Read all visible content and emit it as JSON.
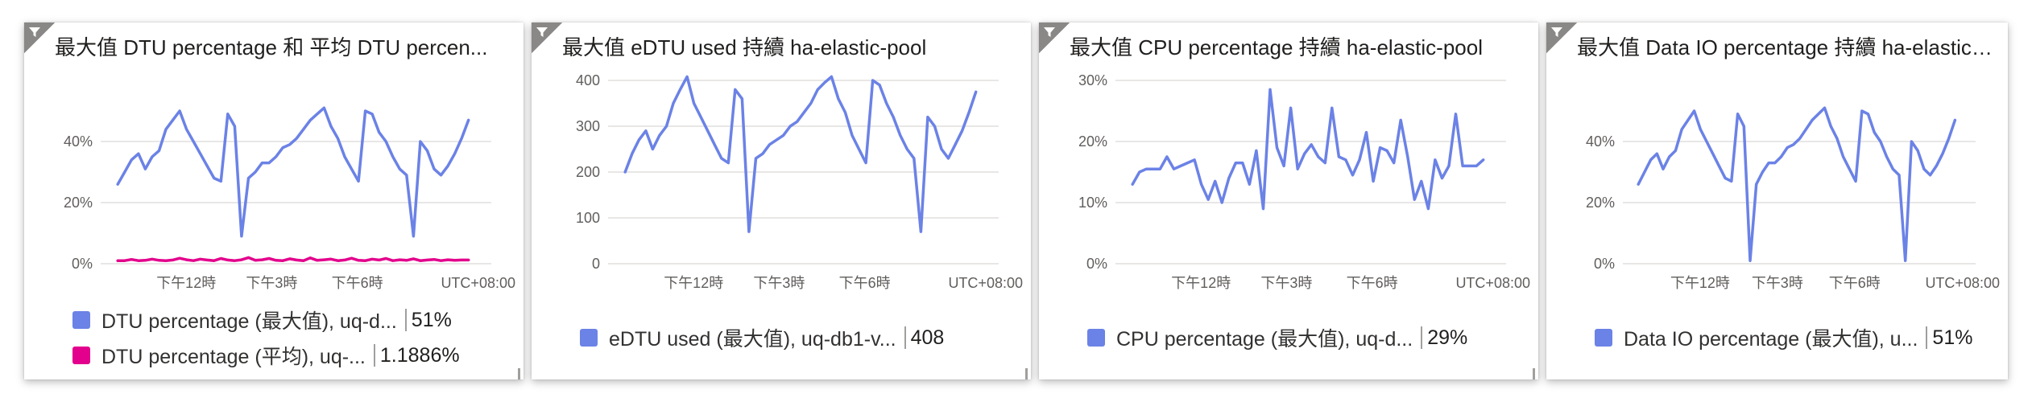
{
  "tiles": [
    {
      "title": "最大值 DTU percentage 和 平均 DTU percen...",
      "timezone": "UTC+08:00",
      "legend": [
        {
          "label": "DTU percentage (最大值), uq-d...",
          "value": "51%",
          "color": "#6b82e6"
        },
        {
          "label": "DTU percentage (平均), uq-...",
          "value": "1.1886%",
          "color": "#e3008c"
        }
      ]
    },
    {
      "title": "最大值 eDTU used 持續 ha-elastic-pool",
      "timezone": "UTC+08:00",
      "legend": [
        {
          "label": "eDTU used (最大值), uq-db1-v...",
          "value": "408",
          "color": "#6b82e6"
        }
      ]
    },
    {
      "title": "最大值 CPU percentage 持續 ha-elastic-pool",
      "timezone": "UTC+08:00",
      "legend": [
        {
          "label": "CPU percentage (最大值), uq-d...",
          "value": "29%",
          "color": "#6b82e6"
        }
      ]
    },
    {
      "title": "最大值 Data IO percentage 持續 ha-elastic-...",
      "timezone": "UTC+08:00",
      "legend": [
        {
          "label": "Data IO percentage (最大值), u...",
          "value": "51%",
          "color": "#6b82e6"
        }
      ]
    }
  ],
  "chart_data": [
    {
      "type": "line",
      "title": "最大值 DTU percentage 和 平均 DTU percen...",
      "ylabel": "",
      "xlabel": "",
      "yticks": [
        "0%",
        "20%",
        "40%"
      ],
      "ylim": [
        0,
        60
      ],
      "xticks": [
        "下午12時",
        "下午3時",
        "下午6時"
      ],
      "xtick_positions": [
        3,
        6,
        9
      ],
      "xlim": [
        0,
        13.7
      ],
      "series": [
        {
          "name": "DTU percentage (最大值), uq-d...",
          "color": "#6b82e6",
          "values": [
            26,
            30,
            34,
            36,
            31,
            35,
            37,
            44,
            47,
            50,
            44,
            40,
            36,
            32,
            28,
            27,
            49,
            45,
            9,
            28,
            30,
            33,
            33,
            35,
            38,
            39,
            41,
            44,
            47,
            49,
            51,
            45,
            41,
            35,
            31,
            27,
            50,
            49,
            43,
            40,
            35,
            31,
            29,
            9,
            40,
            37,
            31,
            29,
            32,
            36,
            41,
            47
          ]
        },
        {
          "name": "DTU percentage (平均), uq-...",
          "color": "#e3008c",
          "values": [
            1,
            1,
            1.4,
            1,
            1.1,
            1.5,
            1.1,
            1,
            1.2,
            1.8,
            1.3,
            1,
            1.5,
            1.2,
            1,
            1.7,
            1.2,
            1,
            1.3,
            2,
            1.1,
            1.3,
            1.7,
            1.1,
            1,
            1.6,
            1.2,
            1,
            1.9,
            1.1,
            1.3,
            1.5,
            1,
            1.2,
            1.8,
            1.1,
            1,
            1.5,
            1.2,
            1.7,
            1,
            1.3,
            1.1,
            1.6,
            1,
            1.2,
            1.4,
            1,
            1.3,
            1.1,
            1.2,
            1.2
          ]
        }
      ]
    },
    {
      "type": "line",
      "title": "最大值 eDTU used 持續 ha-elastic-pool",
      "ylabel": "",
      "xlabel": "",
      "yticks": [
        "0",
        "100",
        "200",
        "300",
        "400"
      ],
      "ylim": [
        0,
        400
      ],
      "xticks": [
        "下午12時",
        "下午3時",
        "下午6時"
      ],
      "xtick_positions": [
        3,
        6,
        9
      ],
      "xlim": [
        0,
        13.7
      ],
      "series": [
        {
          "name": "eDTU used (最大值), uq-db1-v...",
          "color": "#6b82e6",
          "values": [
            200,
            240,
            270,
            290,
            250,
            280,
            300,
            350,
            380,
            408,
            350,
            320,
            290,
            260,
            230,
            220,
            380,
            360,
            70,
            230,
            240,
            260,
            270,
            280,
            300,
            310,
            330,
            350,
            380,
            395,
            408,
            360,
            330,
            280,
            250,
            220,
            400,
            390,
            350,
            320,
            280,
            250,
            230,
            70,
            320,
            300,
            250,
            230,
            260,
            290,
            330,
            375
          ]
        }
      ]
    },
    {
      "type": "line",
      "title": "最大值 CPU percentage 持續 ha-elastic-pool",
      "ylabel": "",
      "xlabel": "",
      "yticks": [
        "0%",
        "10%",
        "20%",
        "30%"
      ],
      "ylim": [
        0,
        30
      ],
      "xticks": [
        "下午12時",
        "下午3時",
        "下午6時"
      ],
      "xtick_positions": [
        3,
        6,
        9
      ],
      "xlim": [
        0,
        13.7
      ],
      "series": [
        {
          "name": "CPU percentage (最大值), uq-d...",
          "color": "#6b82e6",
          "values": [
            13,
            15,
            15.5,
            15.5,
            15.5,
            17.5,
            15.5,
            16,
            16.5,
            17,
            13,
            10.5,
            13.5,
            10,
            14,
            16.5,
            16.5,
            13,
            18.5,
            9,
            28.5,
            19,
            16,
            25.5,
            15.5,
            18,
            19.5,
            17.5,
            16.5,
            25.5,
            17.5,
            17,
            14.5,
            17,
            21.5,
            13.5,
            19,
            18.5,
            16.5,
            23.5,
            17.5,
            10.5,
            13.5,
            9,
            17,
            14,
            16,
            24.5,
            16,
            16,
            16,
            17
          ]
        }
      ]
    },
    {
      "type": "line",
      "title": "最大值 Data IO percentage 持續 ha-elastic-...",
      "ylabel": "",
      "xlabel": "",
      "yticks": [
        "0%",
        "20%",
        "40%"
      ],
      "ylim": [
        0,
        60
      ],
      "xticks": [
        "下午12時",
        "下午3時",
        "下午6時"
      ],
      "xtick_positions": [
        3,
        6,
        9
      ],
      "xlim": [
        0,
        13.7
      ],
      "series": [
        {
          "name": "Data IO percentage (最大值), u...",
          "color": "#6b82e6",
          "values": [
            26,
            30,
            34,
            36,
            31,
            35,
            37,
            44,
            47,
            50,
            44,
            40,
            36,
            32,
            28,
            27,
            49,
            45,
            1,
            26,
            30,
            33,
            33,
            35,
            38,
            39,
            41,
            44,
            47,
            49,
            51,
            45,
            41,
            35,
            31,
            27,
            50,
            49,
            43,
            40,
            35,
            31,
            29,
            1,
            40,
            37,
            31,
            29,
            32,
            36,
            41,
            47
          ]
        }
      ]
    }
  ]
}
